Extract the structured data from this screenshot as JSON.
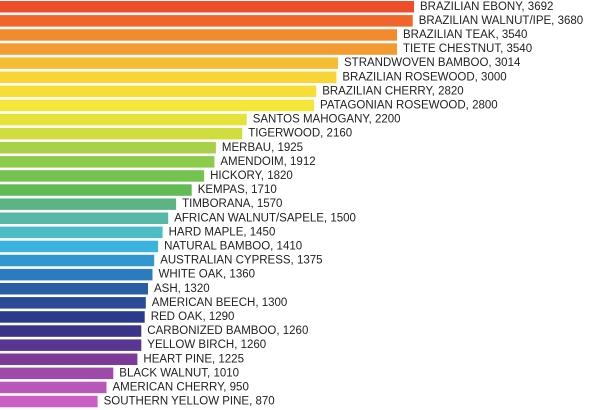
{
  "chart_data": {
    "type": "bar",
    "orientation": "horizontal",
    "title": "",
    "xlabel": "",
    "ylabel": "",
    "grid": false,
    "legend": "none",
    "xlim": [
      0,
      3692
    ],
    "categories": [
      "BRAZILIAN EBONY",
      "BRAZILIAN WALNUT/IPE",
      "BRAZILIAN TEAK",
      "TIETE CHESTNUT",
      "STRANDWOVEN BAMBOO",
      "BRAZILIAN ROSEWOOD",
      "BRAZILIAN CHERRY",
      "PATAGONIAN ROSEWOOD",
      "SANTOS MAHOGANY",
      "TIGERWOOD",
      "MERBAU",
      "AMENDOIM",
      "HICKORY",
      "KEMPAS",
      "TIMBORANA",
      "AFRICAN WALNUT/SAPELE",
      "HARD MAPLE",
      "NATURAL BAMBOO",
      "AUSTRALIAN CYPRESS",
      "WHITE OAK",
      "ASH",
      "AMERICAN BEECH",
      "RED OAK",
      "CARBONIZED BAMBOO",
      "YELLOW BIRCH",
      "HEART PINE",
      "BLACK WALNUT",
      "AMERICAN CHERRY",
      "SOUTHERN YELLOW PINE"
    ],
    "values": [
      3692,
      3680,
      3540,
      3540,
      3014,
      3000,
      2820,
      2800,
      2200,
      2160,
      1925,
      1912,
      1820,
      1710,
      1570,
      1500,
      1450,
      1410,
      1375,
      1360,
      1320,
      1300,
      1290,
      1260,
      1260,
      1225,
      1010,
      950,
      870
    ],
    "labels": [
      "BRAZILIAN EBONY, 3692",
      "BRAZILIAN WALNUT/IPE, 3680",
      "BRAZILIAN TEAK, 3540",
      "TIETE CHESTNUT, 3540",
      "STRANDWOVEN BAMBOO, 3014",
      "BRAZILIAN ROSEWOOD, 3000",
      "BRAZILIAN CHERRY, 2820",
      "PATAGONIAN ROSEWOOD, 2800",
      "SANTOS MAHOGANY, 2200",
      "TIGERWOOD, 2160",
      "MERBAU, 1925",
      "AMENDOIM, 1912",
      "HICKORY, 1820",
      "KEMPAS, 1710",
      "TIMBORANA, 1570",
      "AFRICAN WALNUT/SAPELE, 1500",
      "HARD MAPLE, 1450",
      "NATURAL BAMBOO, 1410",
      "AUSTRALIAN CYPRESS, 1375",
      "WHITE OAK, 1360",
      "ASH, 1320",
      "AMERICAN BEECH, 1300",
      "RED OAK, 1290",
      "CARBONIZED BAMBOO, 1260",
      "YELLOW BIRCH, 1260",
      "HEART PINE, 1225",
      "BLACK WALNUT, 1010",
      "AMERICAN CHERRY, 950",
      "SOUTHERN YELLOW PINE, 870"
    ],
    "colors": [
      "#ee4d2a",
      "#f0652b",
      "#f38a2f",
      "#f39a31",
      "#f6bd34",
      "#f8d535",
      "#f8dd36",
      "#f6e63a",
      "#e5e23c",
      "#cfdd3e",
      "#a9d148",
      "#8ccb4c",
      "#74c351",
      "#62ba54",
      "#5cb485",
      "#59b7a7",
      "#4cbcc5",
      "#3ab4de",
      "#3197cf",
      "#2b7cbf",
      "#2a5fa5",
      "#2a4a97",
      "#2b3a8b",
      "#3a3387",
      "#573590",
      "#7d3a98",
      "#9c4bab",
      "#b758b8",
      "#c95fc4"
    ]
  }
}
